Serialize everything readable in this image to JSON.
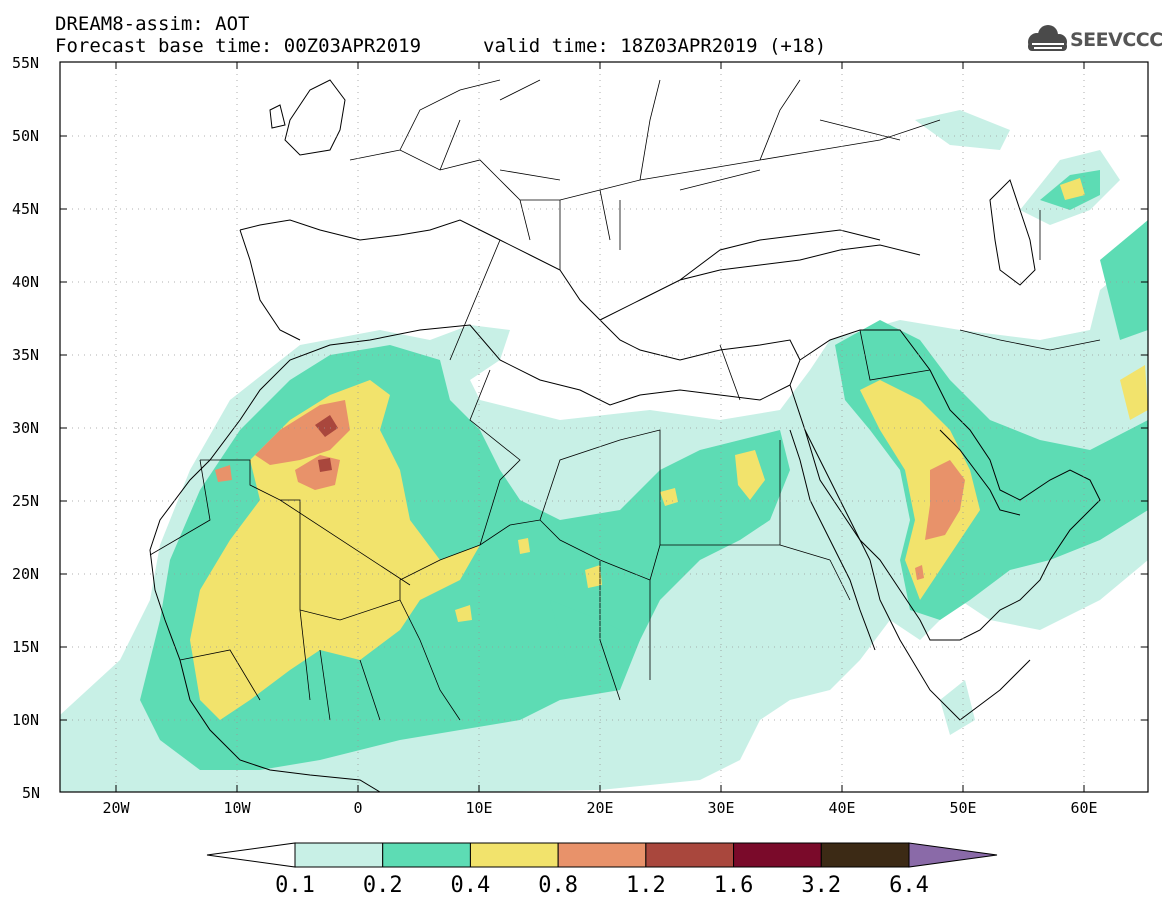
{
  "header": {
    "title_line1": "DREAM8-assim: AOT",
    "forecast_base": "Forecast base time: 00Z03APR2019",
    "valid_time": "valid time: 18Z03APR2019 (+18)",
    "logo_text": "SEEVCCC",
    "logo_icon": "cloud-icon"
  },
  "map": {
    "lon_range": [
      -25,
      65
    ],
    "lat_range": [
      5,
      55
    ],
    "lat_ticks": [
      "55N",
      "50N",
      "45N",
      "40N",
      "35N",
      "30N",
      "25N",
      "20N",
      "15N",
      "10N",
      "5N"
    ],
    "lon_ticks": [
      "20W",
      "10W",
      "0",
      "10E",
      "20E",
      "30E",
      "40E",
      "50E",
      "60E"
    ],
    "gridlines": "dotted"
  },
  "colorbar": {
    "labels": [
      "0.1",
      "0.2",
      "0.4",
      "0.8",
      "1.2",
      "1.6",
      "3.2",
      "6.4"
    ],
    "colors": [
      "#ffffff",
      "#c8f0e6",
      "#5ddcb4",
      "#f2e36c",
      "#e8926a",
      "#a9473d",
      "#7a0a2a",
      "#3c2a15",
      "#8a6aa8"
    ]
  }
}
